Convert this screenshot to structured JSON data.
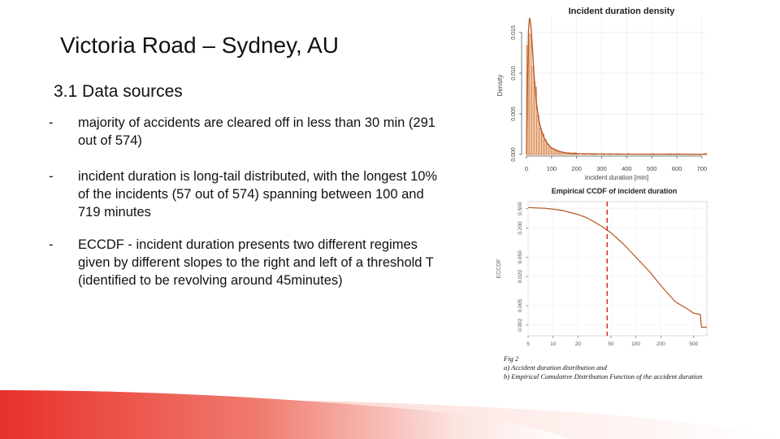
{
  "slide": {
    "title": "Victoria Road – Sydney, AU",
    "section_heading": "3.1 Data sources",
    "bullets": [
      {
        "dash": "-",
        "text": "majority of accidents are cleared off in less than 30 min (291 out of 574)"
      },
      {
        "dash": "-",
        "text": "incident duration is long-tail distributed, with the longest 10% of the incidents (57 out of 574) spanning between 100 and 719 minutes"
      },
      {
        "dash": "-",
        "text": "ECCDF - incident duration presents two different regimes given by different slopes to the right and left of a threshold T (identified to be revolving around 45minutes)"
      }
    ],
    "caption": {
      "line1": "Fig 2",
      "line2": "a) Accident duration distribution and",
      "line3": "b) Empirical Cumulative Distribution Function of the accident duration"
    }
  },
  "colors": {
    "hist_fill": "#f3c7a5",
    "hist_edge": "#c0703c",
    "curve": "#b4541e",
    "threshold": "#d62020",
    "footer_red": "#e8302a"
  },
  "chart_data": [
    {
      "type": "bar",
      "title": "Incident duration density",
      "xlabel": "incident duration [min]",
      "ylabel": "Density",
      "xlim": [
        0,
        720
      ],
      "ylim": [
        0,
        0.017
      ],
      "x_ticks": [
        0,
        100,
        200,
        300,
        400,
        500,
        600,
        700
      ],
      "y_ticks": [
        0.0,
        0.005,
        0.01,
        0.015
      ],
      "y_tick_labels": [
        "0.000",
        "0.005",
        "0.010",
        "0.015"
      ],
      "bin_width": 10,
      "bins_start": [
        0,
        10,
        20,
        30,
        40,
        50,
        60,
        70,
        80,
        90,
        100,
        110,
        120,
        130,
        140,
        150,
        160,
        170,
        180,
        190,
        200,
        210,
        220,
        230,
        240,
        250,
        260,
        270,
        280,
        290,
        300,
        310,
        320,
        330,
        340,
        350,
        360,
        370,
        380,
        390,
        400,
        410,
        420,
        430,
        440,
        450,
        460,
        470,
        480,
        490,
        500,
        510,
        520,
        530,
        540,
        550,
        560,
        570,
        580,
        590,
        600,
        610,
        620,
        630,
        640,
        650,
        660,
        670,
        680,
        690,
        700,
        710
      ],
      "values": [
        0.0134,
        0.0148,
        0.0108,
        0.0083,
        0.0048,
        0.0032,
        0.0025,
        0.0018,
        0.0013,
        0.0008,
        0.0007,
        0.0006,
        0.0004,
        0.0003,
        0.0003,
        0.0002,
        0.0002,
        0.0001,
        0.0001,
        0.0002,
        0.0001,
        0.0,
        0.0001,
        0.0001,
        0.0,
        0.0001,
        0.0001,
        0.0001,
        0.0,
        0.0,
        0.0001,
        0.0,
        0.0,
        0.0001,
        0.0,
        0.0,
        0.0001,
        0.0,
        0.0,
        0.0,
        0.0001,
        0.0,
        0.0,
        0.0,
        0.0,
        0.0,
        0.0,
        0.0,
        0.0,
        0.0,
        0.0001,
        0.0,
        0.0,
        0.0,
        0.0,
        0.0,
        0.0,
        0.0001,
        0.0,
        0.0,
        0.0001,
        0.0,
        0.0,
        0.0,
        0.0,
        0.0,
        0.0,
        0.0,
        0.0,
        0.0,
        0.0,
        0.0001
      ],
      "density_curve": {
        "x": [
          0,
          4,
          8,
          12,
          16,
          20,
          25,
          30,
          40,
          50,
          60,
          70,
          80,
          90,
          100,
          120,
          140,
          160,
          180,
          200,
          250,
          300,
          400,
          500,
          600,
          720
        ],
        "y": [
          0.0,
          0.009,
          0.0152,
          0.0168,
          0.0163,
          0.0148,
          0.0124,
          0.0098,
          0.0063,
          0.0041,
          0.0029,
          0.0021,
          0.0015,
          0.0011,
          0.0008,
          0.0005,
          0.0003,
          0.0002,
          0.00015,
          0.0001,
          8e-05,
          5e-05,
          4e-05,
          3e-05,
          3e-05,
          2e-05
        ]
      },
      "grid": true
    },
    {
      "type": "line",
      "title": "Empirical CCDF of incident duration",
      "xlabel": "",
      "ylabel": "ECCDF",
      "xscale": "log",
      "yscale": "log",
      "xlim": [
        5,
        720
      ],
      "ylim": [
        0.0012,
        0.7
      ],
      "x_ticks": [
        5,
        10,
        20,
        50,
        100,
        200,
        500
      ],
      "x_tick_labels": [
        "5",
        "10",
        "20",
        "50",
        "100",
        "200",
        "500"
      ],
      "y_ticks": [
        0.002,
        0.005,
        0.02,
        0.05,
        0.2,
        0.5
      ],
      "y_tick_labels": [
        "0.002",
        "0.005",
        "0.020",
        "0.050",
        "0.200",
        "0.500"
      ],
      "threshold_x": 45,
      "threshold_style": "dashed",
      "series": [
        {
          "x": [
            5,
            6,
            8,
            10,
            13,
            16,
            20,
            25,
            30,
            35,
            40,
            45,
            50,
            60,
            70,
            80,
            100,
            120,
            150,
            200,
            250,
            300,
            400,
            500,
            600,
            620,
            660,
            720
          ],
          "y": [
            0.53,
            0.52,
            0.51,
            0.49,
            0.46,
            0.42,
            0.38,
            0.33,
            0.28,
            0.24,
            0.21,
            0.18,
            0.16,
            0.12,
            0.095,
            0.075,
            0.05,
            0.036,
            0.024,
            0.013,
            0.0085,
            0.006,
            0.0045,
            0.0035,
            0.0033,
            0.0018,
            0.0018,
            0.0018
          ]
        }
      ],
      "grid": true
    }
  ]
}
